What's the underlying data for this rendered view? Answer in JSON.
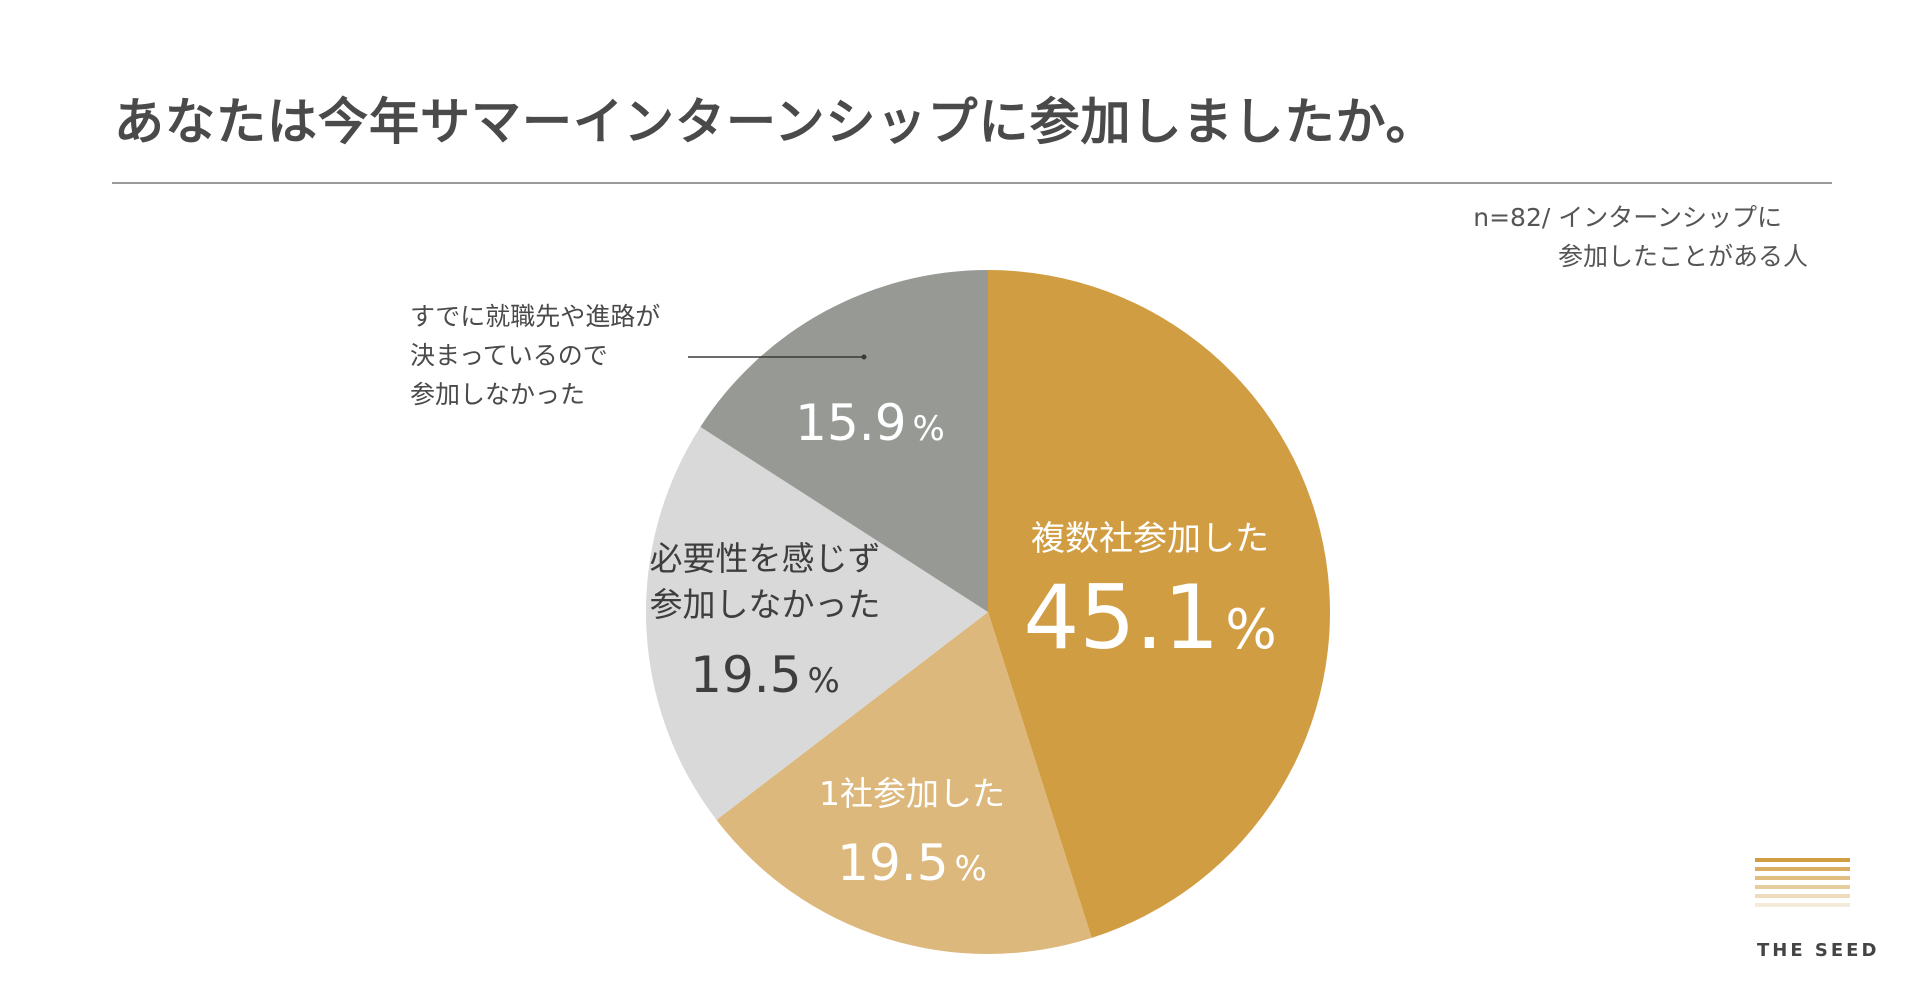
{
  "title": "あなたは今年サマーインターンシップに参加しましたか。",
  "note": {
    "line1": "n=82/ インターンシップに",
    "line2": "参加したことがある人"
  },
  "brand": {
    "name": "THE SEED",
    "bar_colors": [
      "#d19d43",
      "#d9ad62",
      "#e0bd80",
      "#e7cc9e",
      "#eedcbd",
      "#f5ebdb"
    ]
  },
  "chart_data": {
    "type": "pie",
    "slices": [
      {
        "label": "複数社参加した",
        "value": 45.1,
        "value_text": "45.1",
        "unit": "%",
        "color": "#d19d43",
        "text_color": "#ffffff"
      },
      {
        "label": "1社参加した",
        "value": 19.5,
        "value_text": "19.5",
        "unit": "%",
        "color": "#dcb87c",
        "text_color": "#ffffff"
      },
      {
        "label": "必要性を感じず\n参加しなかった",
        "value": 19.5,
        "value_text": "19.5",
        "unit": "%",
        "color": "#d9d9d9",
        "text_color": "#3e3e3e"
      },
      {
        "label": "すでに就職先や進路が\n決まっているので\n参加しなかった",
        "value": 15.9,
        "value_text": "15.9",
        "unit": "%",
        "color": "#979994",
        "text_color": "#ffffff",
        "label_outside": true
      }
    ],
    "outside_label_lines": [
      "すでに就職先や進路が",
      "決まっているので",
      "参加しなかった"
    ]
  }
}
